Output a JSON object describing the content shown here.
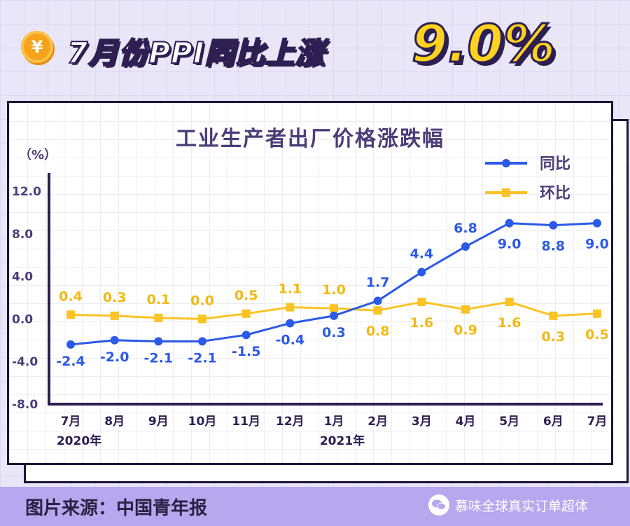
{
  "header": {
    "coin_symbol": "¥",
    "headline": "7月份PPI同比上涨",
    "headline_value": "9.0%"
  },
  "footer": {
    "source": "图片来源：中国青年报",
    "watermark": "慕味全球真实订单超体"
  },
  "colors": {
    "yoy": "#2b59e8",
    "mom": "#fbc324",
    "axis": "#2d1f52",
    "title": "#4b3d78"
  },
  "chart_data": {
    "type": "line",
    "title": "工业生产者出厂价格涨跌幅",
    "ylabel": "（%）",
    "categories": [
      "7月",
      "8月",
      "9月",
      "10月",
      "11月",
      "12月",
      "1月",
      "2月",
      "3月",
      "4月",
      "5月",
      "6月",
      "7月"
    ],
    "year_labels": [
      {
        "text": "2020年",
        "index": 0
      },
      {
        "text": "2021年",
        "index": 6
      }
    ],
    "y_ticks": [
      "12.0",
      "8.0",
      "4.0",
      "0.0",
      "-4.0",
      "-8.0"
    ],
    "ylim": [
      -8,
      12
    ],
    "legend_position": "top-right",
    "series": [
      {
        "name": "同比",
        "color": "#2b59e8",
        "values": [
          -2.4,
          -2.0,
          -2.1,
          -2.1,
          -1.5,
          -0.4,
          0.3,
          1.7,
          4.4,
          6.8,
          9.0,
          8.8,
          9.0
        ],
        "labels": [
          "-2.4",
          "-2.0",
          "-2.1",
          "-2.1",
          "-1.5",
          "-0.4",
          "0.3",
          "1.7",
          "4.4",
          "6.8",
          "9.0",
          "8.8",
          "9.0"
        ]
      },
      {
        "name": "环比",
        "color": "#fbc324",
        "values": [
          0.4,
          0.3,
          0.1,
          0.0,
          0.5,
          1.1,
          1.0,
          0.8,
          1.6,
          0.9,
          1.6,
          0.3,
          0.5
        ],
        "labels": [
          "0.4",
          "0.3",
          "0.1",
          "0.0",
          "0.5",
          "1.1",
          "1.0",
          "0.8",
          "1.6",
          "0.9",
          "1.6",
          "0.3",
          "0.5"
        ]
      }
    ]
  }
}
